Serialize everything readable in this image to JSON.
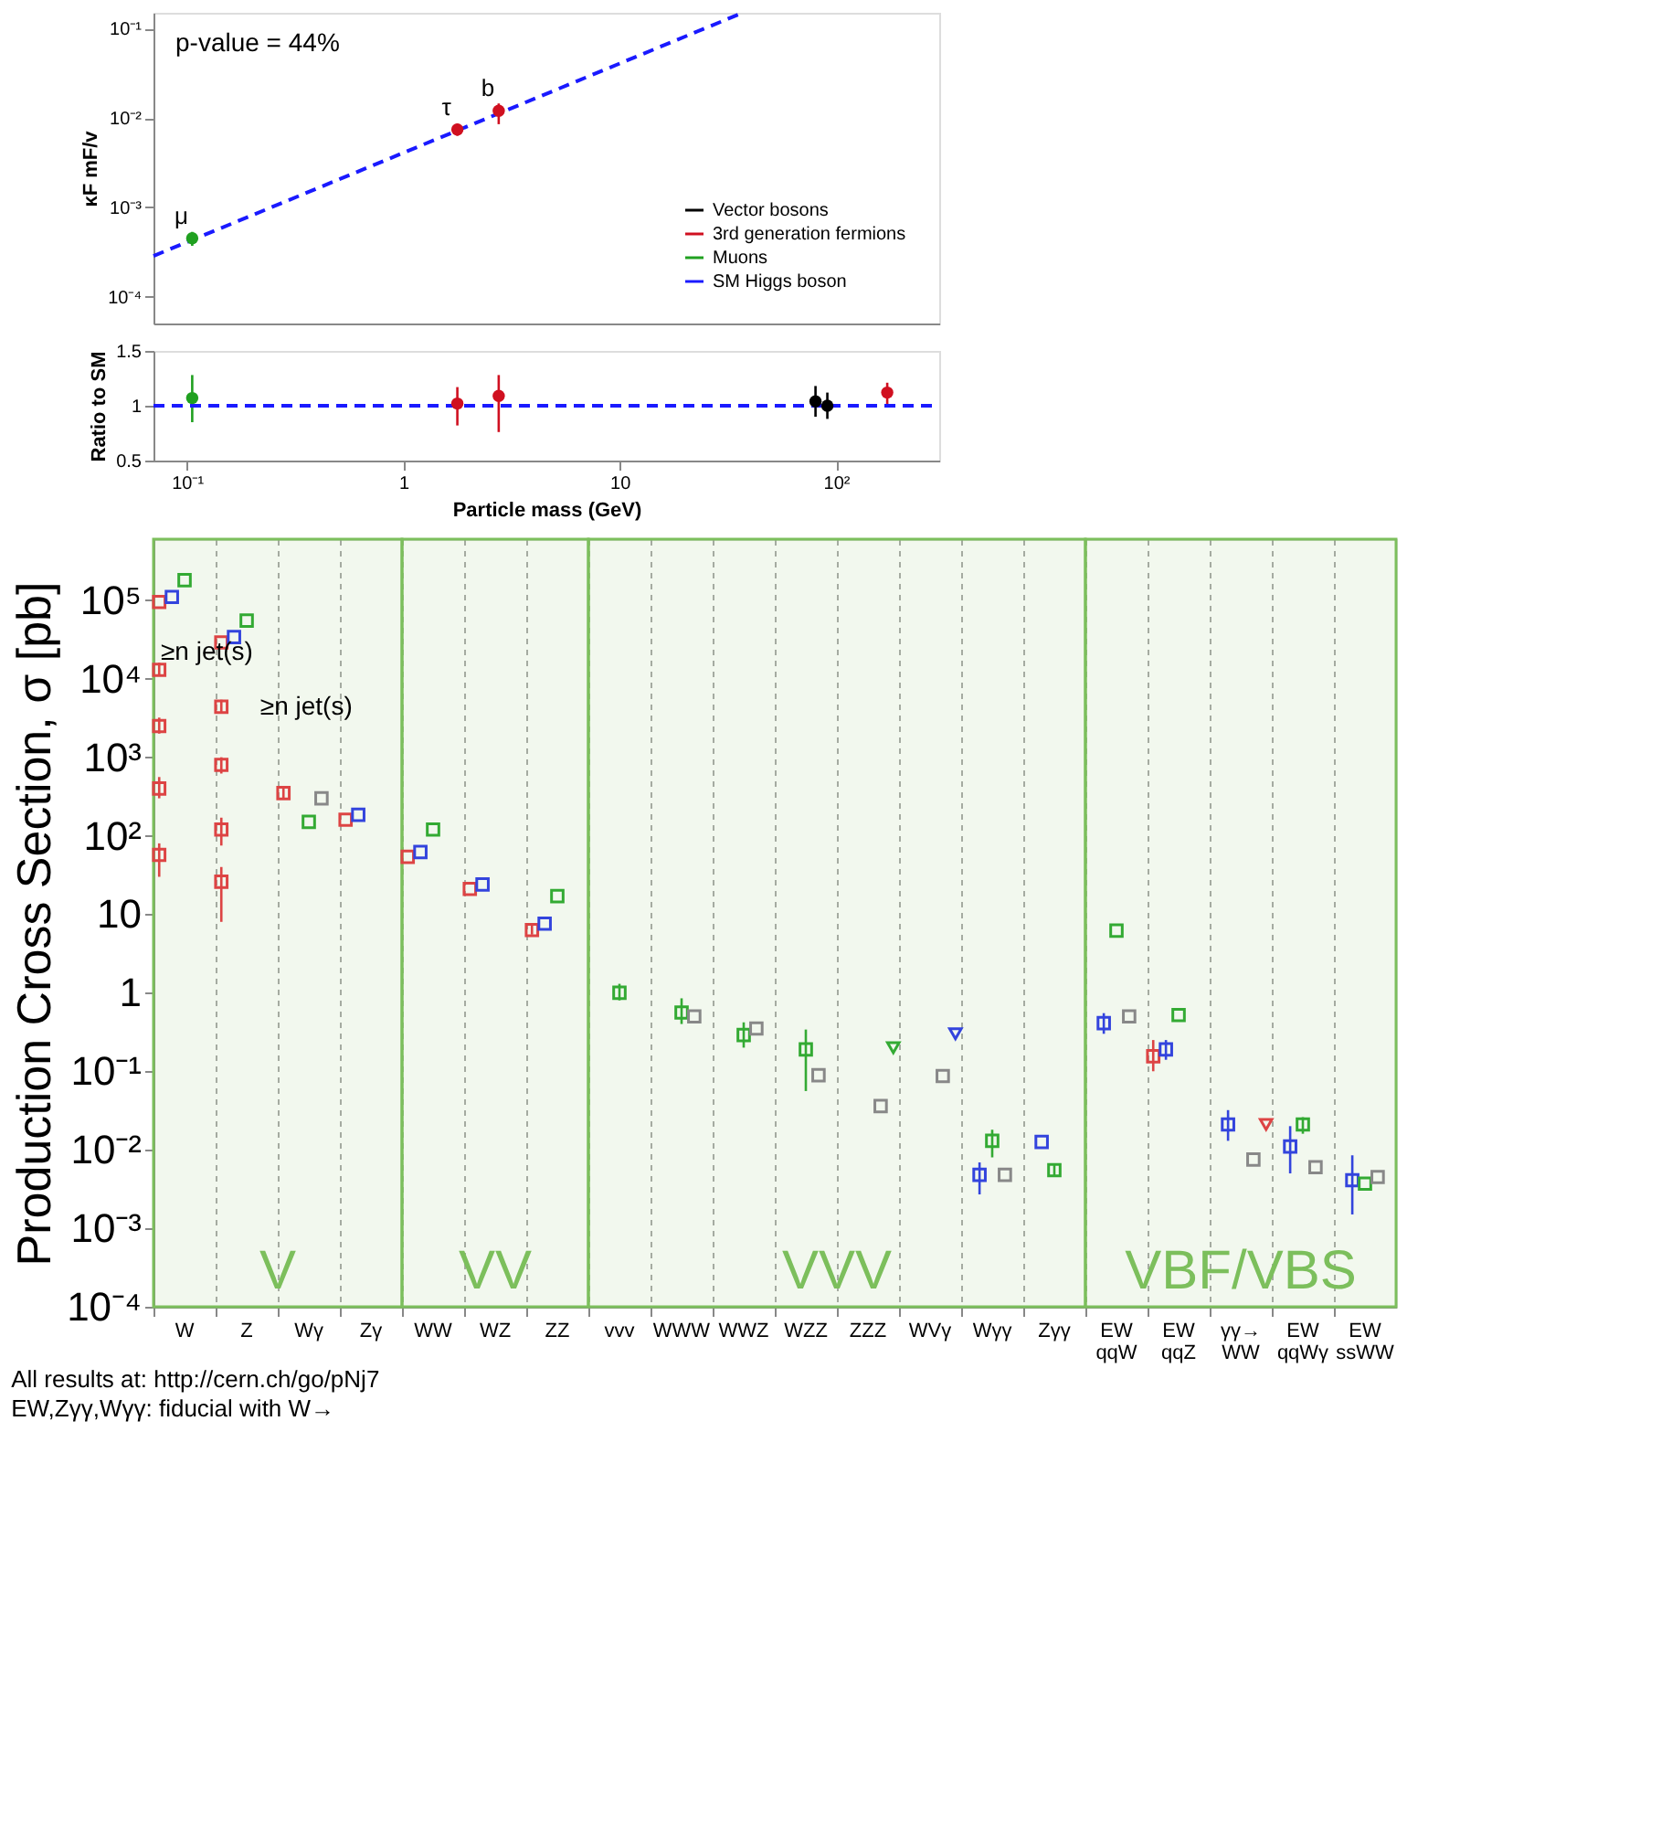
{
  "chart_data": [
    {
      "type": "scatter",
      "ylabel": "κF mF/v",
      "log": "xy",
      "marker": "circle",
      "legend": "bottom right",
      "tick_labels": "y",
      "xlim": [
        0.07,
        300
      ],
      "ylim": [
        5e-05,
        0.15
      ],
      "yticks": [
        {
          "value": 0.0001,
          "label": "10⁻⁴"
        },
        {
          "value": 0.001,
          "label": "10⁻³"
        },
        {
          "value": 0.01,
          "label": "10⁻²"
        },
        {
          "value": 0.1,
          "label": "10⁻¹"
        }
      ],
      "annotations": [
        "p-value = 44%",
        {
          "text": "μ",
          "x": 0.1057,
          "y": 0.00045
        },
        {
          "text": "τ",
          "x": 1.777,
          "y": 0.0074
        },
        {
          "text": "b",
          "x": 2.76,
          "y": 0.012
        }
      ],
      "series": [
        {
          "name": "Vector bosons",
          "color": "#000000"
        },
        {
          "name": "3rd generation fermions",
          "color": "#d01020",
          "x": [
            1.777,
            2.76
          ],
          "values": [
            0.0074,
            0.012
          ],
          "errors": [
            [
              0.0063,
              0.0086
            ],
            [
              0.0085,
              0.0145
            ]
          ]
        },
        {
          "name": "Muons",
          "color": "#20a020",
          "x": [
            0.1057
          ],
          "values": [
            0.00045
          ],
          "errors": [
            [
              0.00037,
              0.00053
            ]
          ]
        },
        {
          "name": "SM Higgs boson",
          "type": "line",
          "line_style": "dashed",
          "marker": "none",
          "color": "#1a1aff",
          "x": [
            0.07,
            37
          ],
          "values": [
            0.000285,
            0.15
          ]
        }
      ]
    },
    {
      "type": "scatter",
      "xlabel": "Particle mass (GeV)",
      "ylabel": "Ratio to SM",
      "log": "x",
      "marker": "circle",
      "xlim": [
        0.07,
        300
      ],
      "xticks": [
        {
          "value": 0.1,
          "label": "10⁻¹"
        },
        1,
        10,
        {
          "value": 100,
          "label": "10²"
        }
      ],
      "ylim": [
        0.5,
        1.5
      ],
      "yticks": [
        0.5,
        1,
        1.5
      ],
      "series": [
        {
          "color": "#20a020",
          "x": [
            0.1057
          ],
          "values": [
            1.07
          ],
          "errors": [
            [
              0.85,
              1.28
            ]
          ]
        },
        {
          "color": "#d01020",
          "x": [
            1.777,
            2.76,
            172.5
          ],
          "values": [
            1.02,
            1.09,
            1.12
          ],
          "errors": [
            [
              0.82,
              1.17
            ],
            [
              0.76,
              1.28
            ],
            [
              1.0,
              1.21
            ]
          ]
        },
        {
          "color": "#000000",
          "x": [
            80.4,
            91.2
          ],
          "values": [
            1.04,
            1.0
          ],
          "errors": [
            [
              0.9,
              1.18
            ],
            [
              0.88,
              1.12
            ]
          ]
        },
        {
          "type": "line",
          "line_style": "dashed",
          "marker": "none",
          "color": "#1a1aff",
          "x": [
            0.07,
            300
          ],
          "values": [
            1,
            1
          ]
        }
      ]
    },
    {
      "type": "scatter",
      "ylabel": "Production Cross Section, σ [pb]",
      "log": true,
      "marker": "square",
      "grid": "x",
      "categories": [
        "W",
        "Z",
        "Wγ",
        "Zγ",
        "WW",
        "WZ",
        "ZZ",
        "vvv",
        "WWW",
        "WWZ",
        "WZZ",
        "ZZZ",
        "WVγ",
        "Wγγ",
        "Zγγ",
        "EW\nqqW",
        "EW\nqqZ",
        "γγ→\nWW",
        "EW\nqqWγ",
        "EW\nssWW"
      ],
      "ylim": [
        0.0001,
        600000
      ],
      "yticks": [
        {
          "value": 0.0001,
          "label": "10⁻⁴"
        },
        {
          "value": 0.001,
          "label": "10⁻³"
        },
        {
          "value": 0.01,
          "label": "10⁻²"
        },
        {
          "value": 0.1,
          "label": "10⁻¹"
        },
        1,
        10,
        {
          "value": 100,
          "label": "10²"
        },
        {
          "value": 1000,
          "label": "10³"
        },
        {
          "value": 10000,
          "label": "10⁴"
        },
        {
          "value": 100000,
          "label": "10⁵"
        }
      ],
      "bands": [
        {
          "axis": "x",
          "from": "W",
          "to": "Zγ",
          "label": "V",
          "color": "#7cbf5c"
        },
        {
          "axis": "x",
          "from": "WW",
          "to": "ZZ",
          "label": "VV",
          "color": "#7cbf5c"
        },
        {
          "axis": "x",
          "from": "vvv",
          "to": "Zγγ",
          "label": "VVV",
          "color": "#7cbf5c"
        },
        {
          "axis": "x",
          "from": "EW\nqqW",
          "to": "EW\nssWW",
          "label": "VBF/VBS",
          "color": "#7cbf5c"
        }
      ],
      "annotations": [
        "≥n jet(s)",
        "≥n jet(s)",
        "All results at: http://cern.ch/go/pNj7",
        "EW,Zγγ,Wγγ: fiducial with W→"
      ],
      "series": [
        {
          "color": "#dd4444",
          "x": [
            "W",
            "Z",
            "Wγ",
            "Zγ",
            "WW",
            "WZ",
            "ZZ",
            "W",
            "W",
            "W",
            "W",
            "Z",
            "Z",
            "Z",
            "Z",
            "EW\nqqZ"
          ],
          "values": [
            95000,
            29000,
            350,
            160,
            54,
            21,
            6.3,
            13000,
            2500,
            400,
            57,
            4400,
            800,
            120,
            26,
            0.155
          ],
          "errors": [
            null,
            null,
            [
              300,
              400
            ],
            null,
            null,
            null,
            [
              5.5,
              7.3
            ],
            [
              11000,
              16000
            ],
            [
              2000,
              3200
            ],
            [
              300,
              560
            ],
            [
              30,
              80
            ],
            [
              3600,
              5400
            ],
            [
              620,
              1000
            ],
            [
              75,
              170
            ],
            [
              8,
              40
            ],
            [
              0.1,
              0.25
            ]
          ]
        },
        {
          "color": "#3344dd",
          "x": [
            "W",
            "Z",
            "Zγ",
            "WW",
            "WZ",
            "ZZ",
            "Wγγ",
            "Zγγ",
            "EW\nqqW",
            "EW\nqqZ",
            "γγ→\nWW",
            "EW\nqqWγ",
            "EW\nssWW"
          ],
          "values": [
            110000,
            34000,
            185,
            62,
            24,
            7.6,
            0.0048,
            0.0126,
            0.41,
            0.19,
            0.021,
            0.011,
            0.0041
          ],
          "errors": [
            null,
            null,
            null,
            null,
            null,
            null,
            [
              0.0027,
              0.0069
            ],
            null,
            [
              0.3,
              0.55
            ],
            [
              0.14,
              0.25
            ],
            [
              0.013,
              0.032
            ],
            [
              0.005,
              0.02
            ],
            [
              0.0015,
              0.0085
            ]
          ]
        },
        {
          "color": "#33aa33",
          "x": [
            "W",
            "Z",
            "Wγ",
            "WW",
            "ZZ",
            "vvv",
            "WWW",
            "WWZ",
            "WZZ",
            "Wγγ",
            "Zγγ",
            "EW\nqqW",
            "EW\nqqZ",
            "EW\nqqWγ",
            "EW\nssWW"
          ],
          "values": [
            180000,
            55000,
            150,
            120,
            17,
            1.0,
            0.56,
            0.29,
            0.19,
            0.013,
            0.0055,
            6.2,
            0.52,
            0.021,
            0.0037
          ],
          "errors": [
            null,
            null,
            null,
            null,
            null,
            [
              0.8,
              1.3
            ],
            [
              0.4,
              0.85
            ],
            [
              0.2,
              0.42
            ],
            [
              0.056,
              0.34
            ],
            [
              0.008,
              0.018
            ],
            [
              0.0045,
              0.0065
            ],
            null,
            null,
            [
              0.016,
              0.026
            ],
            null
          ]
        },
        {
          "color": "#888888",
          "x": [
            "Wγ",
            "WWW",
            "WWZ",
            "WZZ",
            "ZZZ",
            "WVγ",
            "Wγγ",
            "EW\nqqW",
            "γγ→\nWW",
            "EW\nqqWγ",
            "EW\nssWW"
          ],
          "values": [
            300,
            0.5,
            0.35,
            0.089,
            0.036,
            0.087,
            0.0048,
            0.5,
            0.0075,
            0.006,
            0.0045
          ]
        },
        {
          "marker": "triangle",
          "colors": [
            "#33aa33",
            "#3344dd",
            "#dd4444"
          ],
          "x": [
            "ZZZ",
            "WVγ",
            "γγ→\nWW"
          ],
          "values": [
            0.2,
            0.3,
            0.021
          ]
        }
      ]
    }
  ]
}
